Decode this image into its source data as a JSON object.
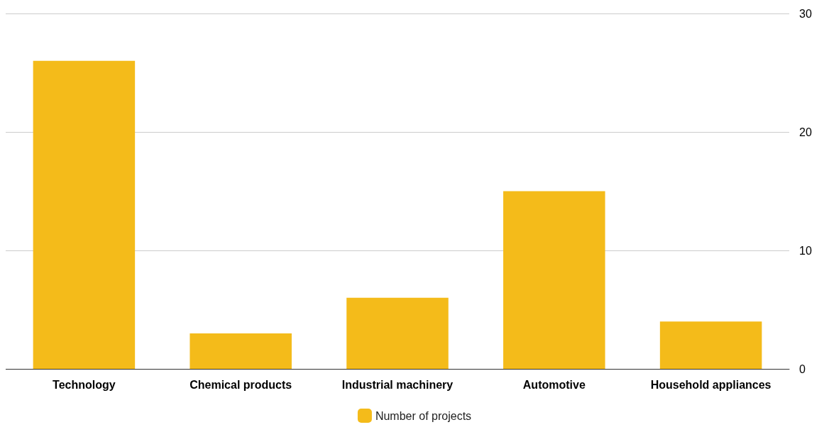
{
  "chart_data": {
    "type": "bar",
    "categories": [
      "Technology",
      "Chemical products",
      "Industrial machinery",
      "Automotive",
      "Household appliances"
    ],
    "series": [
      {
        "name": "Number of projects",
        "color": "#f4bb1a",
        "values": [
          26,
          3,
          6,
          15,
          4
        ]
      }
    ],
    "ylim": [
      0,
      30
    ],
    "yticks": [
      0,
      10,
      20,
      30
    ],
    "grid": "y",
    "legend": "bottom"
  }
}
